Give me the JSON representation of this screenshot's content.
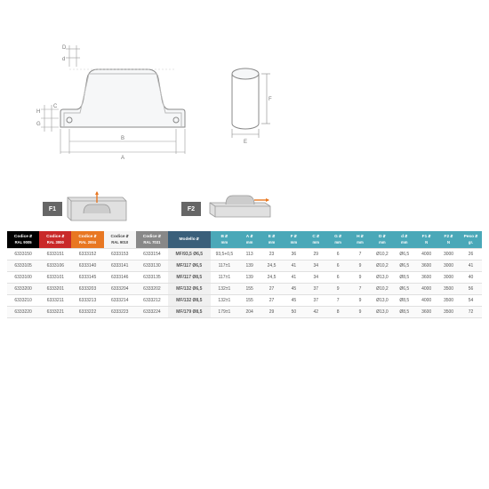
{
  "headers": [
    {
      "cls": "h0",
      "label": "Codice",
      "sub": "RAL 9005",
      "sort": true
    },
    {
      "cls": "h1",
      "label": "Codice",
      "sub": "RAL 3000",
      "sort": true
    },
    {
      "cls": "h2",
      "label": "Codice",
      "sub": "RAL 2004",
      "sort": true
    },
    {
      "cls": "h3",
      "label": "Codice",
      "sub": "RAL 9010",
      "sort": true
    },
    {
      "cls": "h4",
      "label": "Codice",
      "sub": "RAL 7031",
      "sort": true
    },
    {
      "cls": "hm",
      "label": "Modello",
      "sub": "",
      "sort": true
    },
    {
      "cls": "hd",
      "label": "B",
      "sub": "mm",
      "sort": true
    },
    {
      "cls": "hd",
      "label": "A",
      "sub": "mm",
      "sort": true
    },
    {
      "cls": "hd",
      "label": "E",
      "sub": "mm",
      "sort": true
    },
    {
      "cls": "hd",
      "label": "F",
      "sub": "mm",
      "sort": true
    },
    {
      "cls": "hd",
      "label": "C",
      "sub": "mm",
      "sort": true
    },
    {
      "cls": "hd",
      "label": "G",
      "sub": "mm",
      "sort": true
    },
    {
      "cls": "hd",
      "label": "H",
      "sub": "mm",
      "sort": true
    },
    {
      "cls": "hd",
      "label": "D",
      "sub": "mm",
      "sort": true
    },
    {
      "cls": "hd",
      "label": "d",
      "sub": "mm",
      "sort": true
    },
    {
      "cls": "hd",
      "label": "F1",
      "sub": "N",
      "sort": true
    },
    {
      "cls": "hd",
      "label": "F2",
      "sub": "N",
      "sort": true
    },
    {
      "cls": "hd",
      "label": "Peso",
      "sub": "gr.",
      "sort": true
    }
  ],
  "rows": [
    [
      "6333150",
      "6333151",
      "6333152",
      "6333153",
      "6333154",
      "MF/93,5 Ø6,5",
      "93,5+0,5",
      "113",
      "23",
      "36",
      "29",
      "6",
      "7",
      "Ø10,2",
      "Ø6,5",
      "4000",
      "3000",
      "26"
    ],
    [
      "6333105",
      "6333106",
      "6333140",
      "6333141",
      "6333130",
      "MF/117 Ø6,5",
      "117±1",
      "139",
      "24,5",
      "41",
      "34",
      "6",
      "9",
      "Ø10,2",
      "Ø6,5",
      "3600",
      "3000",
      "41"
    ],
    [
      "6333100",
      "6333101",
      "6333145",
      "6333146",
      "6333135",
      "MF/117 Ø8,5",
      "117±1",
      "139",
      "24,5",
      "41",
      "34",
      "6",
      "9",
      "Ø13,0",
      "Ø8,5",
      "3600",
      "3000",
      "40"
    ],
    [
      "6333200",
      "6333201",
      "6333203",
      "6333204",
      "6333202",
      "MF/132 Ø6,5",
      "132±1",
      "155",
      "27",
      "45",
      "37",
      "9",
      "7",
      "Ø10,2",
      "Ø6,5",
      "4000",
      "3500",
      "56"
    ],
    [
      "6333210",
      "6333211",
      "6333213",
      "6333214",
      "6333212",
      "MF/132 Ø8,5",
      "132±1",
      "155",
      "27",
      "45",
      "37",
      "7",
      "9",
      "Ø13,0",
      "Ø8,5",
      "4000",
      "3500",
      "54"
    ],
    [
      "6333220",
      "6333221",
      "6333222",
      "6333223",
      "6333224",
      "MF/179 Ø8,5",
      "179±1",
      "204",
      "29",
      "50",
      "42",
      "8",
      "9",
      "Ø13,0",
      "Ø8,5",
      "3600",
      "3500",
      "72"
    ]
  ],
  "colw": [
    "32",
    "32",
    "32",
    "32",
    "32",
    "42",
    "28",
    "22",
    "22",
    "22",
    "22",
    "22",
    "22",
    "22",
    "22",
    "22",
    "22",
    "22"
  ],
  "f1": "F1",
  "f2": "F2",
  "dim_labels": [
    "D",
    "d",
    "H",
    "G",
    "C",
    "B",
    "A",
    "F",
    "E"
  ]
}
